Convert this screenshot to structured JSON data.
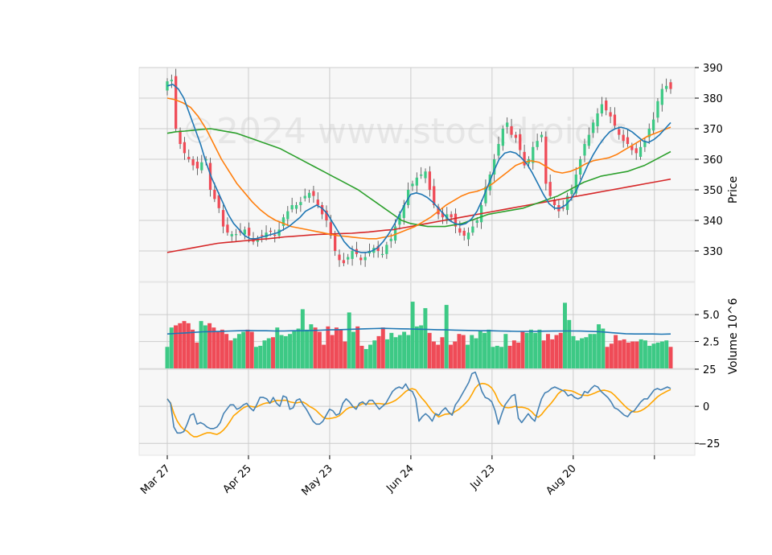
{
  "watermark": "©2024 www.stockdroid.c",
  "colors": {
    "up": "#3dc985",
    "down": "#ef4b57",
    "ma_fast": "#1f77b4",
    "ma_mid": "#ff7f0e",
    "ma_slow": "#2ca02c",
    "ma_long": "#d62728",
    "vol_ma": "#1f77b4",
    "osc_fast": "#4682b4",
    "osc_slow": "#ffa500",
    "panel_bg": "#f7f7f7",
    "grid": "#cccccc"
  },
  "chart_data": {
    "type": "candlestick",
    "x_tick_labels": [
      "Mar 27",
      "Apr 25",
      "May 23",
      "Jun 24",
      "Jul 23",
      "Aug 20",
      ""
    ],
    "x_tick_index": [
      0,
      20,
      40,
      60,
      80,
      100,
      120
    ],
    "price_panel": {
      "ylabel": "Price",
      "ylim": [
        320,
        390
      ],
      "yticks": [
        330,
        340,
        350,
        360,
        370,
        380,
        390
      ],
      "close": [
        385.5,
        386.0,
        370.0,
        365.0,
        362.0,
        360.0,
        358.0,
        357.0,
        359.0,
        360.0,
        350.0,
        347.0,
        344.0,
        338.0,
        336.0,
        335.5,
        335.5,
        336.0,
        337.0,
        335.0,
        333.0,
        334.0,
        335.0,
        336.0,
        336.5,
        335.0,
        337.0,
        341.0,
        343.0,
        345.0,
        345.0,
        346.0,
        348.0,
        349.0,
        348.0,
        345.0,
        342.0,
        340.0,
        335.0,
        330.0,
        327.0,
        326.0,
        328.0,
        330.0,
        329.0,
        327.0,
        328.0,
        330.0,
        331.0,
        330.0,
        329.0,
        332.0,
        334.0,
        338.0,
        342.0,
        345.0,
        350.0,
        352.0,
        354.0,
        355.0,
        356.0,
        350.0,
        345.0,
        342.0,
        341.0,
        342.0,
        341.0,
        338.0,
        336.0,
        335.0,
        336.0,
        338.0,
        340.0,
        345.0,
        351.0,
        355.0,
        360.0,
        365.0,
        370.0,
        372.0,
        368.0,
        367.0,
        363.0,
        358.0,
        360.0,
        364.0,
        366.0,
        368.0,
        352.0,
        348.0,
        345.0,
        343.0,
        344.0,
        348.0,
        350.0,
        355.0,
        360.0,
        365.0,
        368.0,
        372.0,
        375.0,
        378.0,
        376.0,
        374.0,
        371.0,
        368.0,
        366.0,
        365.0,
        363.0,
        362.0,
        364.0,
        366.0,
        370.0,
        373.0,
        379.0,
        383.0,
        384.0,
        383.0
      ],
      "ma_fast": [
        384.0,
        384.5,
        383.0,
        380.0,
        375.0,
        370.0,
        365.0,
        359.0,
        354.0,
        350.0,
        346.0,
        342.0,
        339.0,
        337.0,
        335.0,
        334.0,
        334.0,
        334.5,
        335.0,
        335.5,
        336.0,
        337.0,
        338.0,
        339.5,
        341.0,
        343.0,
        344.0,
        345.0,
        344.0,
        342.0,
        339.0,
        336.0,
        333.0,
        331.0,
        330.0,
        329.5,
        329.5,
        330.0,
        331.0,
        333.0,
        335.5,
        338.5,
        342.0,
        345.5,
        348.5,
        349.0,
        348.5,
        347.5,
        346.0,
        344.0,
        342.0,
        340.0,
        339.0,
        338.5,
        339.0,
        340.5,
        343.0,
        347.0,
        351.5,
        356.0,
        360.0,
        362.0,
        362.5,
        362.0,
        360.5,
        358.5,
        355.5,
        352.0,
        348.5,
        345.5,
        344.0,
        344.0,
        345.0,
        347.0,
        350.0,
        354.0,
        358.0,
        361.5,
        364.5,
        367.0,
        369.0,
        370.0,
        370.5,
        370.0,
        369.0,
        367.5,
        366.0,
        365.5,
        366.5,
        368.0,
        370.0,
        372.0
      ],
      "ma_mid": [
        380.0,
        379.5,
        378.5,
        377.0,
        374.0,
        370.0,
        365.0,
        360.0,
        356.0,
        352.0,
        349.0,
        346.0,
        343.5,
        341.5,
        340.0,
        339.0,
        338.0,
        337.5,
        337.0,
        336.5,
        336.0,
        335.5,
        335.0,
        334.8,
        334.5,
        334.2,
        334.0,
        334.0,
        334.5,
        335.0,
        336.0,
        337.0,
        338.0,
        339.5,
        341.0,
        343.0,
        345.0,
        346.5,
        348.0,
        349.0,
        349.5,
        350.5,
        352.0,
        354.0,
        356.0,
        358.0,
        359.0,
        359.5,
        359.0,
        357.5,
        356.0,
        355.5,
        356.0,
        357.0,
        358.5,
        359.5,
        360.0,
        360.5,
        361.5,
        363.0,
        364.5,
        366.0,
        367.5,
        368.5,
        369.5,
        370.5
      ],
      "ma_slow": [
        368.5,
        369.0,
        369.2,
        369.5,
        369.8,
        370.0,
        369.5,
        369.0,
        368.5,
        367.5,
        366.5,
        365.5,
        364.5,
        363.5,
        362.0,
        360.5,
        359.0,
        357.5,
        356.0,
        354.5,
        353.0,
        351.5,
        350.0,
        348.0,
        346.0,
        344.0,
        342.0,
        340.0,
        339.0,
        338.5,
        338.0,
        338.0,
        338.0,
        338.5,
        339.0,
        340.0,
        341.0,
        342.0,
        342.5,
        343.0,
        343.5,
        344.0,
        345.0,
        346.0,
        347.0,
        348.0,
        349.5,
        351.0,
        352.5,
        353.5,
        354.5,
        355.0,
        355.5,
        356.0,
        357.0,
        358.0,
        359.5,
        361.0,
        362.5
      ],
      "ma_long": [
        329.5,
        330.0,
        330.5,
        331.0,
        331.5,
        332.0,
        332.5,
        332.8,
        333.0,
        333.3,
        333.5,
        333.8,
        334.0,
        334.3,
        334.6,
        334.8,
        335.0,
        335.2,
        335.4,
        335.5,
        335.6,
        335.7,
        335.8,
        336.0,
        336.2,
        336.5,
        336.8,
        337.0,
        337.5,
        338.0,
        338.5,
        339.0,
        339.5,
        340.0,
        340.5,
        341.0,
        341.5,
        342.0,
        342.5,
        343.0,
        343.5,
        344.0,
        344.5,
        345.0,
        345.5,
        346.0,
        346.5,
        347.0,
        347.5,
        348.0,
        348.5,
        349.0,
        349.5,
        350.0,
        350.5,
        351.0,
        351.5,
        352.0,
        352.5,
        353.0,
        353.5
      ]
    },
    "volume_panel": {
      "ylabel": "Volume  10^6",
      "ylim": [
        0,
        8.0
      ],
      "yticks": [
        2.5,
        5.0
      ],
      "volume": [
        2.0,
        3.8,
        4.0,
        4.2,
        4.4,
        4.2,
        3.6,
        2.4,
        4.4,
        4.0,
        4.2,
        3.8,
        3.4,
        3.6,
        3.2,
        2.6,
        2.8,
        3.2,
        3.4,
        3.6,
        3.4,
        2.0,
        2.1,
        2.6,
        2.8,
        2.9,
        3.8,
        3.1,
        3.0,
        3.2,
        3.5,
        3.7,
        5.5,
        3.6,
        4.1,
        3.8,
        3.4,
        2.2,
        3.9,
        3.1,
        3.8,
        3.6,
        2.5,
        5.2,
        3.4,
        3.9,
        2.1,
        1.8,
        2.2,
        2.6,
        3.0,
        3.8,
        2.7,
        3.3,
        2.9,
        3.1,
        3.4,
        3.1,
        6.2,
        3.9,
        4.0,
        5.6,
        3.3,
        2.5,
        2.2,
        2.9,
        5.9,
        2.2,
        2.5,
        3.2,
        3.1,
        2.2,
        3.1,
        2.8,
        3.5,
        3.3,
        3.6,
        2.0,
        2.1,
        2.0,
        3.2,
        2.1,
        2.6,
        2.4,
        3.4,
        3.3,
        3.6,
        3.3,
        3.6,
        2.6,
        3.2,
        2.7,
        3.1,
        3.3,
        6.1,
        4.5,
        3.0,
        2.6,
        2.8,
        2.9,
        3.2,
        3.2,
        4.1,
        3.7,
        2.0,
        2.3,
        3.1,
        2.6,
        2.7,
        2.4,
        2.5,
        2.5,
        2.7,
        2.6,
        2.1,
        2.3,
        2.4,
        2.5,
        2.6,
        2.0
      ],
      "vol_ma": [
        3.2,
        3.25,
        3.3,
        3.35,
        3.4,
        3.42,
        3.45,
        3.48,
        3.5,
        3.52,
        3.5,
        3.5,
        3.48,
        3.48,
        3.5,
        3.5,
        3.52,
        3.55,
        3.58,
        3.6,
        3.62,
        3.65,
        3.68,
        3.7,
        3.72,
        3.7,
        3.68,
        3.66,
        3.64,
        3.62,
        3.6,
        3.58,
        3.56,
        3.54,
        3.52,
        3.5,
        3.5,
        3.48,
        3.46,
        3.44,
        3.44,
        3.45,
        3.46,
        3.47,
        3.48,
        3.48,
        3.47,
        3.45,
        3.42,
        3.35,
        3.28,
        3.22,
        3.2,
        3.2,
        3.2,
        3.18,
        3.2
      ]
    },
    "oscillator_panel": {
      "ylim": [
        -33,
        25
      ],
      "yticks": [
        -25,
        0,
        25
      ],
      "fast": [
        5,
        2,
        -14,
        -18,
        -18,
        -17,
        -12,
        -6,
        -5,
        -12,
        -11,
        -12,
        -14,
        -15,
        -15,
        -14,
        -11,
        -5,
        -2,
        1,
        1,
        -2,
        -1,
        1,
        2,
        -1,
        -3,
        1,
        6,
        6,
        5,
        2,
        6,
        2,
        0,
        7,
        6,
        -2,
        -1,
        4,
        5,
        1,
        -2,
        -6,
        -10,
        -12,
        -12,
        -10,
        -6,
        -2,
        -3,
        -6,
        -5,
        2,
        5,
        3,
        0,
        -2,
        2,
        3,
        1,
        4,
        4,
        1,
        -2,
        0,
        2,
        6,
        10,
        12,
        13,
        12,
        15,
        11,
        10,
        5,
        -10,
        -7,
        -5,
        -7,
        -10,
        -5,
        -6,
        -3,
        -1,
        -4,
        -6,
        1,
        4,
        8,
        12,
        16,
        22,
        23,
        17,
        10,
        6,
        5,
        3,
        -3,
        -12,
        -5,
        1,
        4,
        7,
        8,
        -8,
        -11,
        -8,
        -5,
        -8,
        -10,
        -2,
        5,
        9,
        10,
        12,
        13,
        12,
        11,
        10,
        7,
        8,
        6,
        5,
        6,
        10,
        9,
        12,
        14,
        13,
        10,
        8,
        6,
        3,
        -1,
        -2,
        -4,
        -6,
        -7,
        -4,
        -3,
        0,
        3,
        5,
        5,
        8,
        11,
        12,
        11,
        12,
        13,
        12
      ]
    }
  }
}
